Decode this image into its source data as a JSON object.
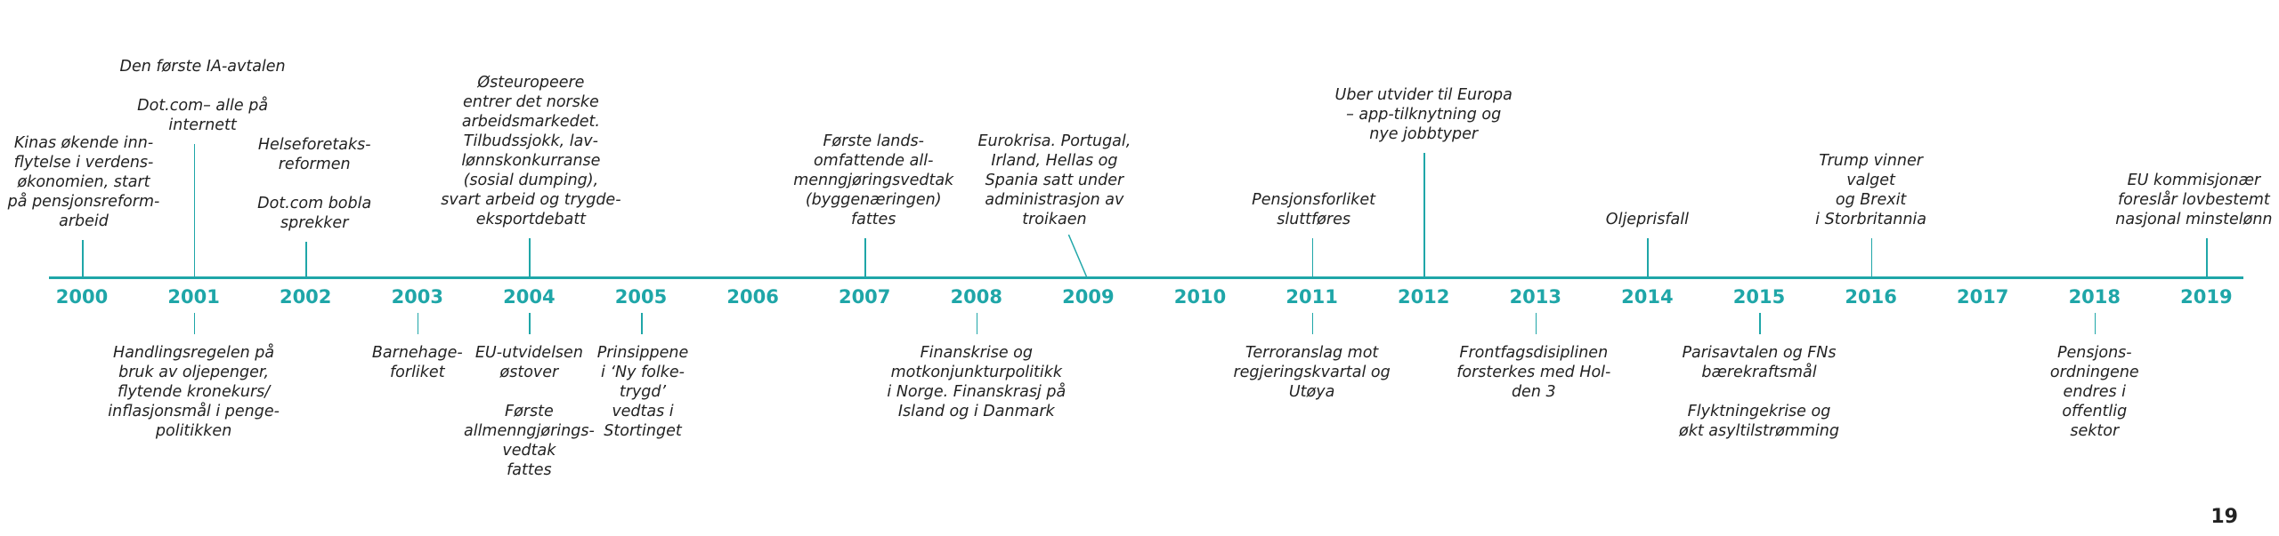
{
  "colors": {
    "accent": "#1fa6a8",
    "text": "#222222",
    "background": "#ffffff"
  },
  "years": [
    "2000",
    "2001",
    "2002",
    "2003",
    "2004",
    "2005",
    "2006",
    "2007",
    "2008",
    "2009",
    "2010",
    "2011",
    "2012",
    "2013",
    "2014",
    "2015",
    "2016",
    "2017",
    "2018",
    "2019"
  ],
  "events": [
    {
      "year": "2000",
      "side": "above",
      "text": "Kinas økende inn-\nflytelse i verdens-\nøkonomien, start\npå pensjonsreform-\narbeid"
    },
    {
      "year": "2001",
      "side": "above",
      "text": "Den første IA-avtalen\n\nDot.com– alle på\ninternett"
    },
    {
      "year": "2002",
      "side": "above",
      "text": "Helseforetaks-\nreformen\n\nDot.com bobla\nsprekker"
    },
    {
      "year": "2004",
      "side": "above",
      "text": "Østeuropeere\nentrer det norske\narbeidsmarkedet.\nTilbudssjokk, lav-\nlønnskonkurranse\n(sosial dumping),\nsvart arbeid og trygde-\neksportdebatt"
    },
    {
      "year": "2007",
      "side": "above",
      "text": "Første lands-\nomfattende all-\nmenngjøringsvedtak\n(byggenæringen)\nfattes"
    },
    {
      "year": "2009",
      "side": "above",
      "text": "Eurokrisa. Portugal,\nIrland, Hellas og\nSpania satt under\nadministrasjon av\ntroikaen"
    },
    {
      "year": "2011",
      "side": "above",
      "text": "Pensjonsforliket\nsluttføres"
    },
    {
      "year": "2012",
      "side": "above",
      "text": "Uber utvider til Europa\n– app-tilknytning og\nnye jobbtyper"
    },
    {
      "year": "2014",
      "side": "above",
      "text": "Oljeprisfall"
    },
    {
      "year": "2016",
      "side": "above",
      "text": "Trump vinner\nvalget\nog Brexit\ni Storbritannia"
    },
    {
      "year": "2019",
      "side": "above",
      "text": "EU kommisjonær\nforeslår lovbestemt\nnasjonal minstelønn"
    },
    {
      "year": "2001",
      "side": "below",
      "text": "Handlingsregelen på\nbruk av oljepenger,\nflytende kronekurs/\ninflasjonsmål i penge-\npolitikken"
    },
    {
      "year": "2003",
      "side": "below",
      "text": "Barnehage-\nforliket"
    },
    {
      "year": "2004",
      "side": "below",
      "text": "EU-utvidelsen\nøstover\n\nFørste\nallmenngjørings-\nvedtak\nfattes"
    },
    {
      "year": "2005",
      "side": "below",
      "text": "Prinsippene\ni ‘Ny folke-\ntrygd’\nvedtas i\nStortinget"
    },
    {
      "year": "2008",
      "side": "below",
      "text": "Finanskrise og\nmotkonjunkturpolitikk\ni Norge. Finanskrasj på\nIsland og i Danmark"
    },
    {
      "year": "2011",
      "side": "below",
      "text": "Terroranslag mot\nregjeringskvartal og\nUtøya"
    },
    {
      "year": "2013",
      "side": "below",
      "text": "Frontfagsdisiplinen\nforsterkes med Hol-\nden 3"
    },
    {
      "year": "2015",
      "side": "below",
      "text": "Parisavtalen og FNs\nbærekraftsmål\n\nFlyktningekrise og\nøkt asyltilstrømming"
    },
    {
      "year": "2018",
      "side": "below",
      "text": "Pensjons-\nordningene\nendres i\noffentlig\nsektor"
    }
  ],
  "page_number": "19"
}
